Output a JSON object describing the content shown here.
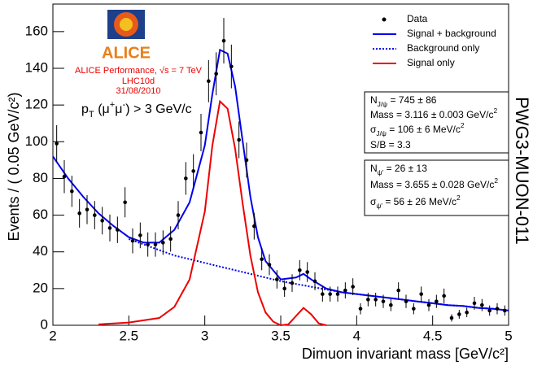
{
  "chart_data": {
    "type": "scatter",
    "y_label": "Events / ( 0.05 GeV/c²)",
    "x_label": "Dimuon invariant mass [GeV/c²]",
    "side_label": "PWG3-MUON-011",
    "xlim": [
      2,
      5
    ],
    "ylim": [
      0,
      175
    ],
    "xticks": [
      2,
      2.5,
      3,
      3.5,
      4,
      4.5,
      5
    ],
    "yticks": [
      0,
      20,
      40,
      60,
      80,
      100,
      120,
      140,
      160
    ],
    "series": [
      {
        "name": "Data",
        "color": "#000000",
        "x": [
          2.025,
          2.075,
          2.125,
          2.175,
          2.225,
          2.275,
          2.325,
          2.375,
          2.425,
          2.475,
          2.525,
          2.575,
          2.625,
          2.675,
          2.725,
          2.775,
          2.825,
          2.875,
          2.925,
          2.975,
          3.025,
          3.075,
          3.125,
          3.175,
          3.225,
          3.275,
          3.325,
          3.375,
          3.425,
          3.475,
          3.525,
          3.575,
          3.625,
          3.675,
          3.725,
          3.775,
          3.825,
          3.875,
          3.925,
          3.975,
          4.025,
          4.075,
          4.125,
          4.175,
          4.225,
          4.275,
          4.325,
          4.375,
          4.425,
          4.475,
          4.525,
          4.575,
          4.625,
          4.675,
          4.725,
          4.775,
          4.825,
          4.875,
          4.925,
          4.975
        ],
        "values": [
          99,
          81,
          73,
          61,
          63,
          60,
          57,
          53,
          52,
          67,
          46,
          49,
          44,
          44,
          45,
          47,
          60,
          80,
          84,
          105,
          133,
          137,
          155,
          141,
          101,
          90,
          54,
          36,
          33,
          25,
          20,
          23,
          30,
          29,
          24,
          17,
          17,
          17,
          19,
          21,
          9,
          14,
          14,
          13,
          11,
          19,
          13,
          9,
          17,
          11,
          13,
          16,
          4,
          6,
          7,
          12,
          11,
          8,
          9,
          8
        ],
        "errors": [
          10,
          9,
          8.5,
          7.8,
          7.9,
          7.7,
          7.5,
          7.3,
          7.2,
          8.2,
          6.8,
          7,
          6.6,
          6.6,
          6.7,
          6.9,
          7.7,
          8.9,
          9.2,
          10.2,
          11.5,
          11.7,
          12.4,
          11.9,
          10,
          9.5,
          7.3,
          6,
          5.7,
          5,
          4.5,
          4.8,
          5.5,
          5.4,
          4.9,
          4.1,
          4.1,
          4.1,
          4.4,
          4.6,
          3,
          3.7,
          3.7,
          3.6,
          3.3,
          4.4,
          3.6,
          3,
          4.1,
          3.3,
          3.6,
          4,
          2,
          2.4,
          2.6,
          3.5,
          3.3,
          2.8,
          3,
          2.8
        ]
      }
    ],
    "curves": [
      {
        "name": "Signal + background",
        "color": "#0000ee",
        "style": "solid",
        "x": [
          2,
          2.1,
          2.2,
          2.3,
          2.4,
          2.5,
          2.6,
          2.7,
          2.8,
          2.9,
          3,
          3.05,
          3.1,
          3.15,
          3.2,
          3.25,
          3.3,
          3.35,
          3.4,
          3.5,
          3.6,
          3.65,
          3.7,
          3.8,
          3.9,
          4,
          4.1,
          4.2,
          4.3,
          4.4,
          4.5,
          4.6,
          4.7,
          4.8,
          4.9,
          5
        ],
        "values": [
          92,
          80,
          70,
          61,
          54,
          48,
          45,
          45,
          52,
          67,
          98,
          126,
          150,
          148,
          130,
          100,
          70,
          48,
          35,
          25,
          26,
          28,
          25,
          20,
          18,
          17,
          16,
          15,
          14,
          13,
          12,
          11,
          10.5,
          9.5,
          9,
          8
        ]
      },
      {
        "name": "Background only",
        "color": "#0000ee",
        "style": "dotted",
        "x": [
          2.5,
          2.6,
          2.7,
          2.8,
          2.9,
          3,
          3.1,
          3.2,
          3.3,
          3.4,
          3.5,
          3.6,
          3.7,
          3.8,
          3.9,
          4,
          4.1,
          4.2,
          4.3,
          4.4,
          4.5,
          4.6,
          4.7,
          4.8,
          4.9,
          5
        ],
        "values": [
          47,
          44,
          41,
          38,
          36,
          34,
          32,
          30,
          28,
          26,
          24,
          22.5,
          21,
          19.5,
          18,
          17,
          16,
          15,
          14,
          13,
          12,
          11,
          10.5,
          9.5,
          9,
          8
        ]
      },
      {
        "name": "Signal only",
        "color": "#ee0000",
        "style": "solid",
        "x": [
          2.3,
          2.5,
          2.7,
          2.8,
          2.9,
          3,
          3.05,
          3.1,
          3.15,
          3.2,
          3.25,
          3.3,
          3.35,
          3.4,
          3.45,
          3.5,
          3.55,
          3.6,
          3.65,
          3.7,
          3.75,
          3.8
        ],
        "values": [
          0.5,
          1.5,
          4,
          10,
          25,
          62,
          98,
          122,
          118,
          96,
          66,
          38,
          18,
          7,
          2,
          0,
          0.5,
          5,
          9.5,
          6,
          1,
          0
        ]
      }
    ],
    "logo": "ALICE",
    "performance": [
      "ALICE Performance, √s = 7 TeV",
      "LHC10d",
      "31/08/2010"
    ],
    "cut": [
      {
        "text": "p"
      },
      {
        "text": "T",
        "pos": "sub"
      },
      {
        "text": " (μ"
      },
      {
        "text": "+",
        "pos": "sup"
      },
      {
        "text": "μ"
      },
      {
        "text": "-",
        "pos": "sup"
      },
      {
        "text": ") > 3 GeV/c"
      }
    ],
    "boxes": [
      [
        [
          {
            "text": "N"
          },
          {
            "text": "J/ψ",
            "pos": "sub"
          },
          {
            "text": " = 745 ± 86"
          }
        ],
        [
          {
            "text": "Mass = 3.116 ± 0.003 GeV/c"
          },
          {
            "text": "2",
            "pos": "sup"
          }
        ],
        [
          {
            "text": "σ"
          },
          {
            "text": "J/ψ",
            "pos": "sub"
          },
          {
            "text": " = 106 ± 6 MeV/c"
          },
          {
            "text": "2",
            "pos": "sup"
          }
        ],
        [
          {
            "text": "S/B = 3.3"
          }
        ]
      ],
      [
        [
          {
            "text": "N"
          },
          {
            "text": "ψ'",
            "pos": "sub"
          },
          {
            "text": " = 26 ± 13"
          }
        ],
        [
          {
            "text": "Mass = 3.655 ± 0.028 GeV/c"
          },
          {
            "text": "2",
            "pos": "sup"
          }
        ],
        [
          {
            "text": "σ"
          },
          {
            "text": "ψ'",
            "pos": "sub"
          },
          {
            "text": " = 56 ± 26 MeV/c"
          },
          {
            "text": "2",
            "pos": "sup"
          }
        ]
      ]
    ]
  }
}
